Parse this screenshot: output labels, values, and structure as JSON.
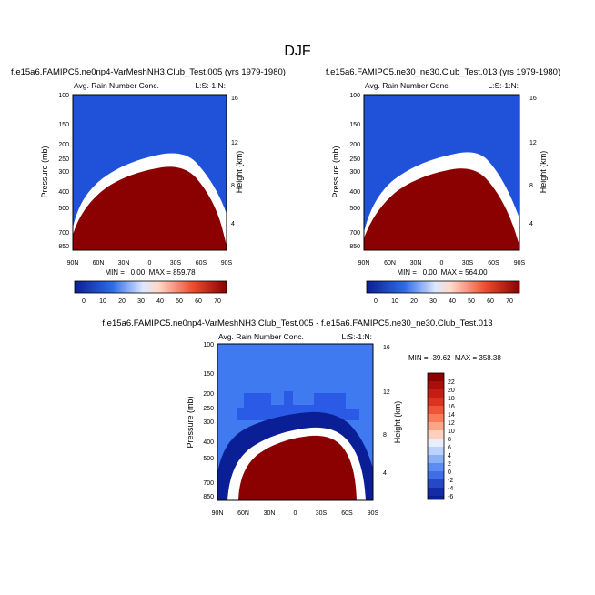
{
  "page": {
    "title": "DJF"
  },
  "colors": {
    "dark_red": "#8b0000",
    "deep_blue": "#0a1e96",
    "background_blue": "#1f52d9"
  },
  "chart_data": [
    {
      "type": "heatmap",
      "title": "f.e15a6.FAMIPC5.ne0np4-VarMeshNH3.Club_Test.005 (yrs 1979-1980)",
      "subtitle_left": "Avg. Rain Number Conc.",
      "subtitle_right": "L:S:-1:N:",
      "ylabel": "Pressure (mb)",
      "ylabel_right": "Height (km)",
      "x_ticks": [
        "90N",
        "60N",
        "30N",
        "0",
        "30S",
        "60S",
        "90S"
      ],
      "y_ticks": [
        "100",
        "150",
        "200",
        "250",
        "300",
        "400",
        "500",
        "700",
        "850"
      ],
      "y_ticks_right": [
        "16",
        "12",
        "8",
        "4"
      ],
      "stats": "MIN =   0.00  MAX = 859.78",
      "colorbar": {
        "orientation": "horizontal",
        "ticks": [
          "0",
          "10",
          "20",
          "30",
          "40",
          "50",
          "60",
          "70"
        ]
      },
      "rain_top_pressure_mb": [
        850,
        520,
        430,
        370,
        330,
        300,
        285,
        280,
        275,
        290,
        330,
        400,
        520,
        720,
        850
      ]
    },
    {
      "type": "heatmap",
      "title": "f.e15a6.FAMIPC5.ne30_ne30.Club_Test.013 (yrs 1979-1980)",
      "subtitle_left": "Avg. Rain Number Conc.",
      "subtitle_right": "L:S:-1:N:",
      "ylabel": "Pressure (mb)",
      "ylabel_right": "Height (km)",
      "x_ticks": [
        "90N",
        "60N",
        "30N",
        "0",
        "30S",
        "60S",
        "90S"
      ],
      "y_ticks": [
        "100",
        "150",
        "200",
        "250",
        "300",
        "400",
        "500",
        "700",
        "850"
      ],
      "y_ticks_right": [
        "16",
        "12",
        "8",
        "4"
      ],
      "stats": "MIN =   0.00  MAX = 564.00",
      "colorbar": {
        "orientation": "horizontal",
        "ticks": [
          "0",
          "10",
          "20",
          "30",
          "40",
          "50",
          "60",
          "70"
        ]
      },
      "rain_top_pressure_mb": [
        850,
        540,
        440,
        375,
        330,
        300,
        285,
        280,
        270,
        285,
        320,
        390,
        500,
        700,
        850
      ]
    },
    {
      "type": "heatmap",
      "title": "f.e15a6.FAMIPC5.ne0np4-VarMeshNH3.Club_Test.005 - f.e15a6.FAMIPC5.ne30_ne30.Club_Test.013",
      "subtitle_left": "Avg. Rain Number Conc.",
      "subtitle_right": "L:S:-1:N:",
      "ylabel": "Pressure (mb)",
      "ylabel_right": "Height (km)",
      "x_ticks": [
        "90N",
        "60N",
        "30N",
        "0",
        "30S",
        "60S",
        "90S"
      ],
      "y_ticks": [
        "100",
        "150",
        "200",
        "250",
        "300",
        "400",
        "500",
        "700",
        "850"
      ],
      "y_ticks_right": [
        "16",
        "12",
        "8",
        "4"
      ],
      "stats": "MIN = -39.62  MAX = 358.38",
      "colorbar": {
        "orientation": "vertical",
        "ticks": [
          "22",
          "20",
          "18",
          "16",
          "14",
          "12",
          "10",
          "8",
          "6",
          "4",
          "2",
          "0",
          "-2",
          "-4",
          "-6"
        ]
      }
    }
  ]
}
